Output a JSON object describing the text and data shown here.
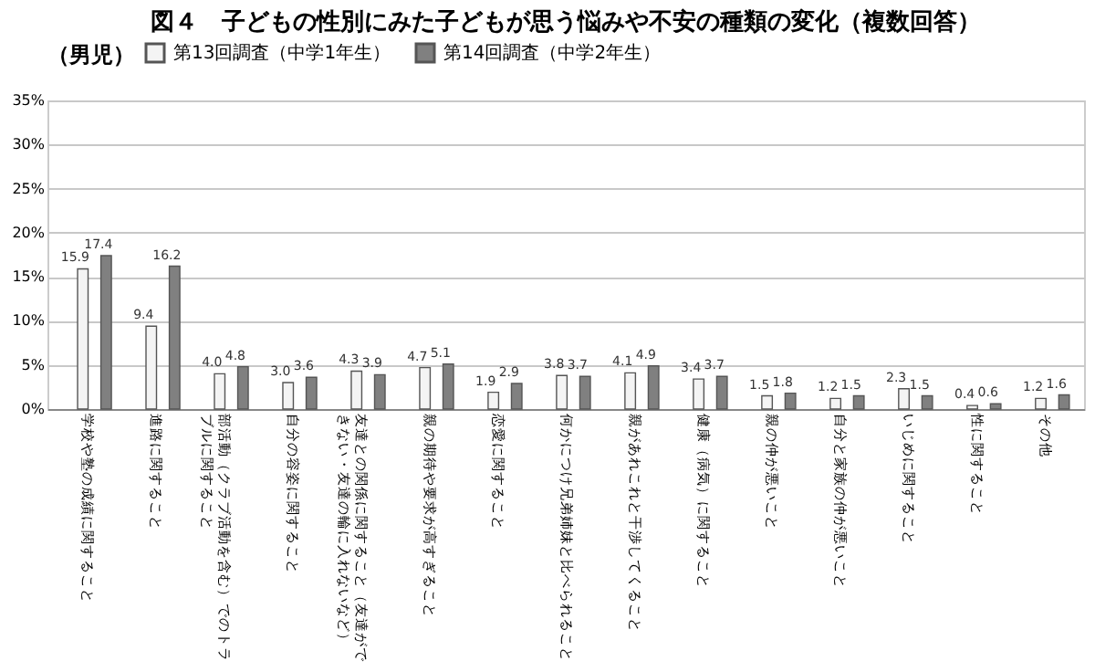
{
  "chart_data": {
    "type": "bar",
    "title": "図４　子どもの性別にみた子どもが思う悩みや不安の種類の変化（複数回答）",
    "categories": [
      "学校や塾の成績に関すること",
      "進路に関すること",
      "部活動（クラブ活動を含む）でのトラブルに関すること",
      "自分の容姿に関すること",
      "友達との関係に関すること（友達ができない・友達の輪に入れないなど）",
      "親の期待や要求が高すぎること",
      "恋愛に関すること",
      "何かにつけ兄弟姉妹と比べられること",
      "親があれこれと干渉してくること",
      "健康（病気）に関すること",
      "親の仲が悪いこと",
      "自分と家族の仲が悪いこと",
      "いじめに関すること",
      "性に関すること",
      "その他"
    ],
    "series": [
      {
        "name": "第13回調査（中学1年生）",
        "color": "#f4f4f4",
        "values": [
          15.9,
          9.4,
          4.0,
          3.0,
          4.3,
          4.7,
          1.9,
          3.8,
          4.1,
          3.4,
          1.5,
          1.2,
          2.3,
          0.4,
          1.2
        ],
        "value_labels": [
          "15.9",
          "9.4",
          "4.0",
          "3.0",
          "4.3",
          "4.7",
          "1.9",
          "3.8",
          "4.1",
          "3.4",
          "1.5",
          "1.2",
          "2.3",
          "0.4",
          "1.2"
        ]
      },
      {
        "name": "第14回調査（中学2年生）",
        "color": "#808080",
        "values": [
          17.4,
          16.2,
          4.8,
          3.6,
          3.9,
          5.1,
          2.9,
          3.7,
          4.9,
          3.7,
          1.8,
          1.5,
          1.5,
          0.6,
          1.6
        ],
        "value_labels": [
          "17.4",
          "16.2",
          "4.8",
          "3.6",
          "3.9",
          "5.1",
          "2.9",
          "3.7",
          "4.9",
          "3.7",
          "1.8",
          "1.5",
          "1.5",
          "0.6",
          "1.6"
        ]
      }
    ],
    "legend_title": "（男児）",
    "legend": "top",
    "ylim": [
      0,
      35
    ],
    "yticks": [
      {
        "value": 0,
        "label": "0%"
      },
      {
        "value": 5,
        "label": "5%"
      },
      {
        "value": 10,
        "label": "10%"
      },
      {
        "value": 15,
        "label": "15%"
      },
      {
        "value": 20,
        "label": "20%"
      },
      {
        "value": 25,
        "label": "25%"
      },
      {
        "value": 30,
        "label": "30%"
      },
      {
        "value": 35,
        "label": "35%"
      }
    ],
    "grid": "y"
  }
}
